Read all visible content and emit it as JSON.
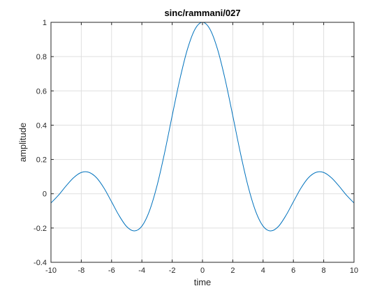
{
  "chart_data": {
    "type": "line",
    "title": "sinc/rammani/027",
    "xlabel": "time",
    "ylabel": "amplitude",
    "xlim": [
      -10,
      10
    ],
    "ylim": [
      -0.4,
      1
    ],
    "xticks": [
      -10,
      -8,
      -6,
      -4,
      -2,
      0,
      2,
      4,
      6,
      8,
      10
    ],
    "yticks": [
      -0.4,
      -0.2,
      0,
      0.2,
      0.4,
      0.6,
      0.8,
      1
    ],
    "xtick_labels": [
      "-10",
      "-8",
      "-6",
      "-4",
      "-2",
      "0",
      "2",
      "4",
      "6",
      "8",
      "10"
    ],
    "ytick_labels": [
      "-0.4",
      "-0.2",
      "0",
      "0.2",
      "0.4",
      "0.6",
      "0.8",
      "1"
    ],
    "grid": true,
    "series": [
      {
        "color": "#0072bd",
        "x": [
          -10,
          -9.5,
          -9,
          -8.5,
          -8,
          -7.5,
          -7,
          -6.5,
          -6,
          -5.5,
          -5,
          -4.5,
          -4,
          -3.5,
          -3,
          -2.5,
          -2,
          -1.5,
          -1,
          -0.5,
          0,
          0.5,
          1,
          1.5,
          2,
          2.5,
          3,
          3.5,
          4,
          4.5,
          5,
          5.5,
          6,
          6.5,
          7,
          7.5,
          8,
          8.5,
          9,
          9.5,
          10
        ],
        "y": [
          -0.054,
          -0.008,
          0.046,
          0.094,
          0.124,
          0.125,
          0.094,
          0.033,
          -0.047,
          -0.128,
          -0.192,
          -0.217,
          -0.189,
          -0.1,
          0.047,
          0.239,
          0.455,
          0.665,
          0.841,
          0.959,
          1,
          0.959,
          0.841,
          0.665,
          0.455,
          0.239,
          0.047,
          -0.1,
          -0.189,
          -0.217,
          -0.192,
          -0.128,
          -0.047,
          0.033,
          0.094,
          0.125,
          0.124,
          0.094,
          0.046,
          -0.008,
          -0.054
        ]
      }
    ]
  }
}
